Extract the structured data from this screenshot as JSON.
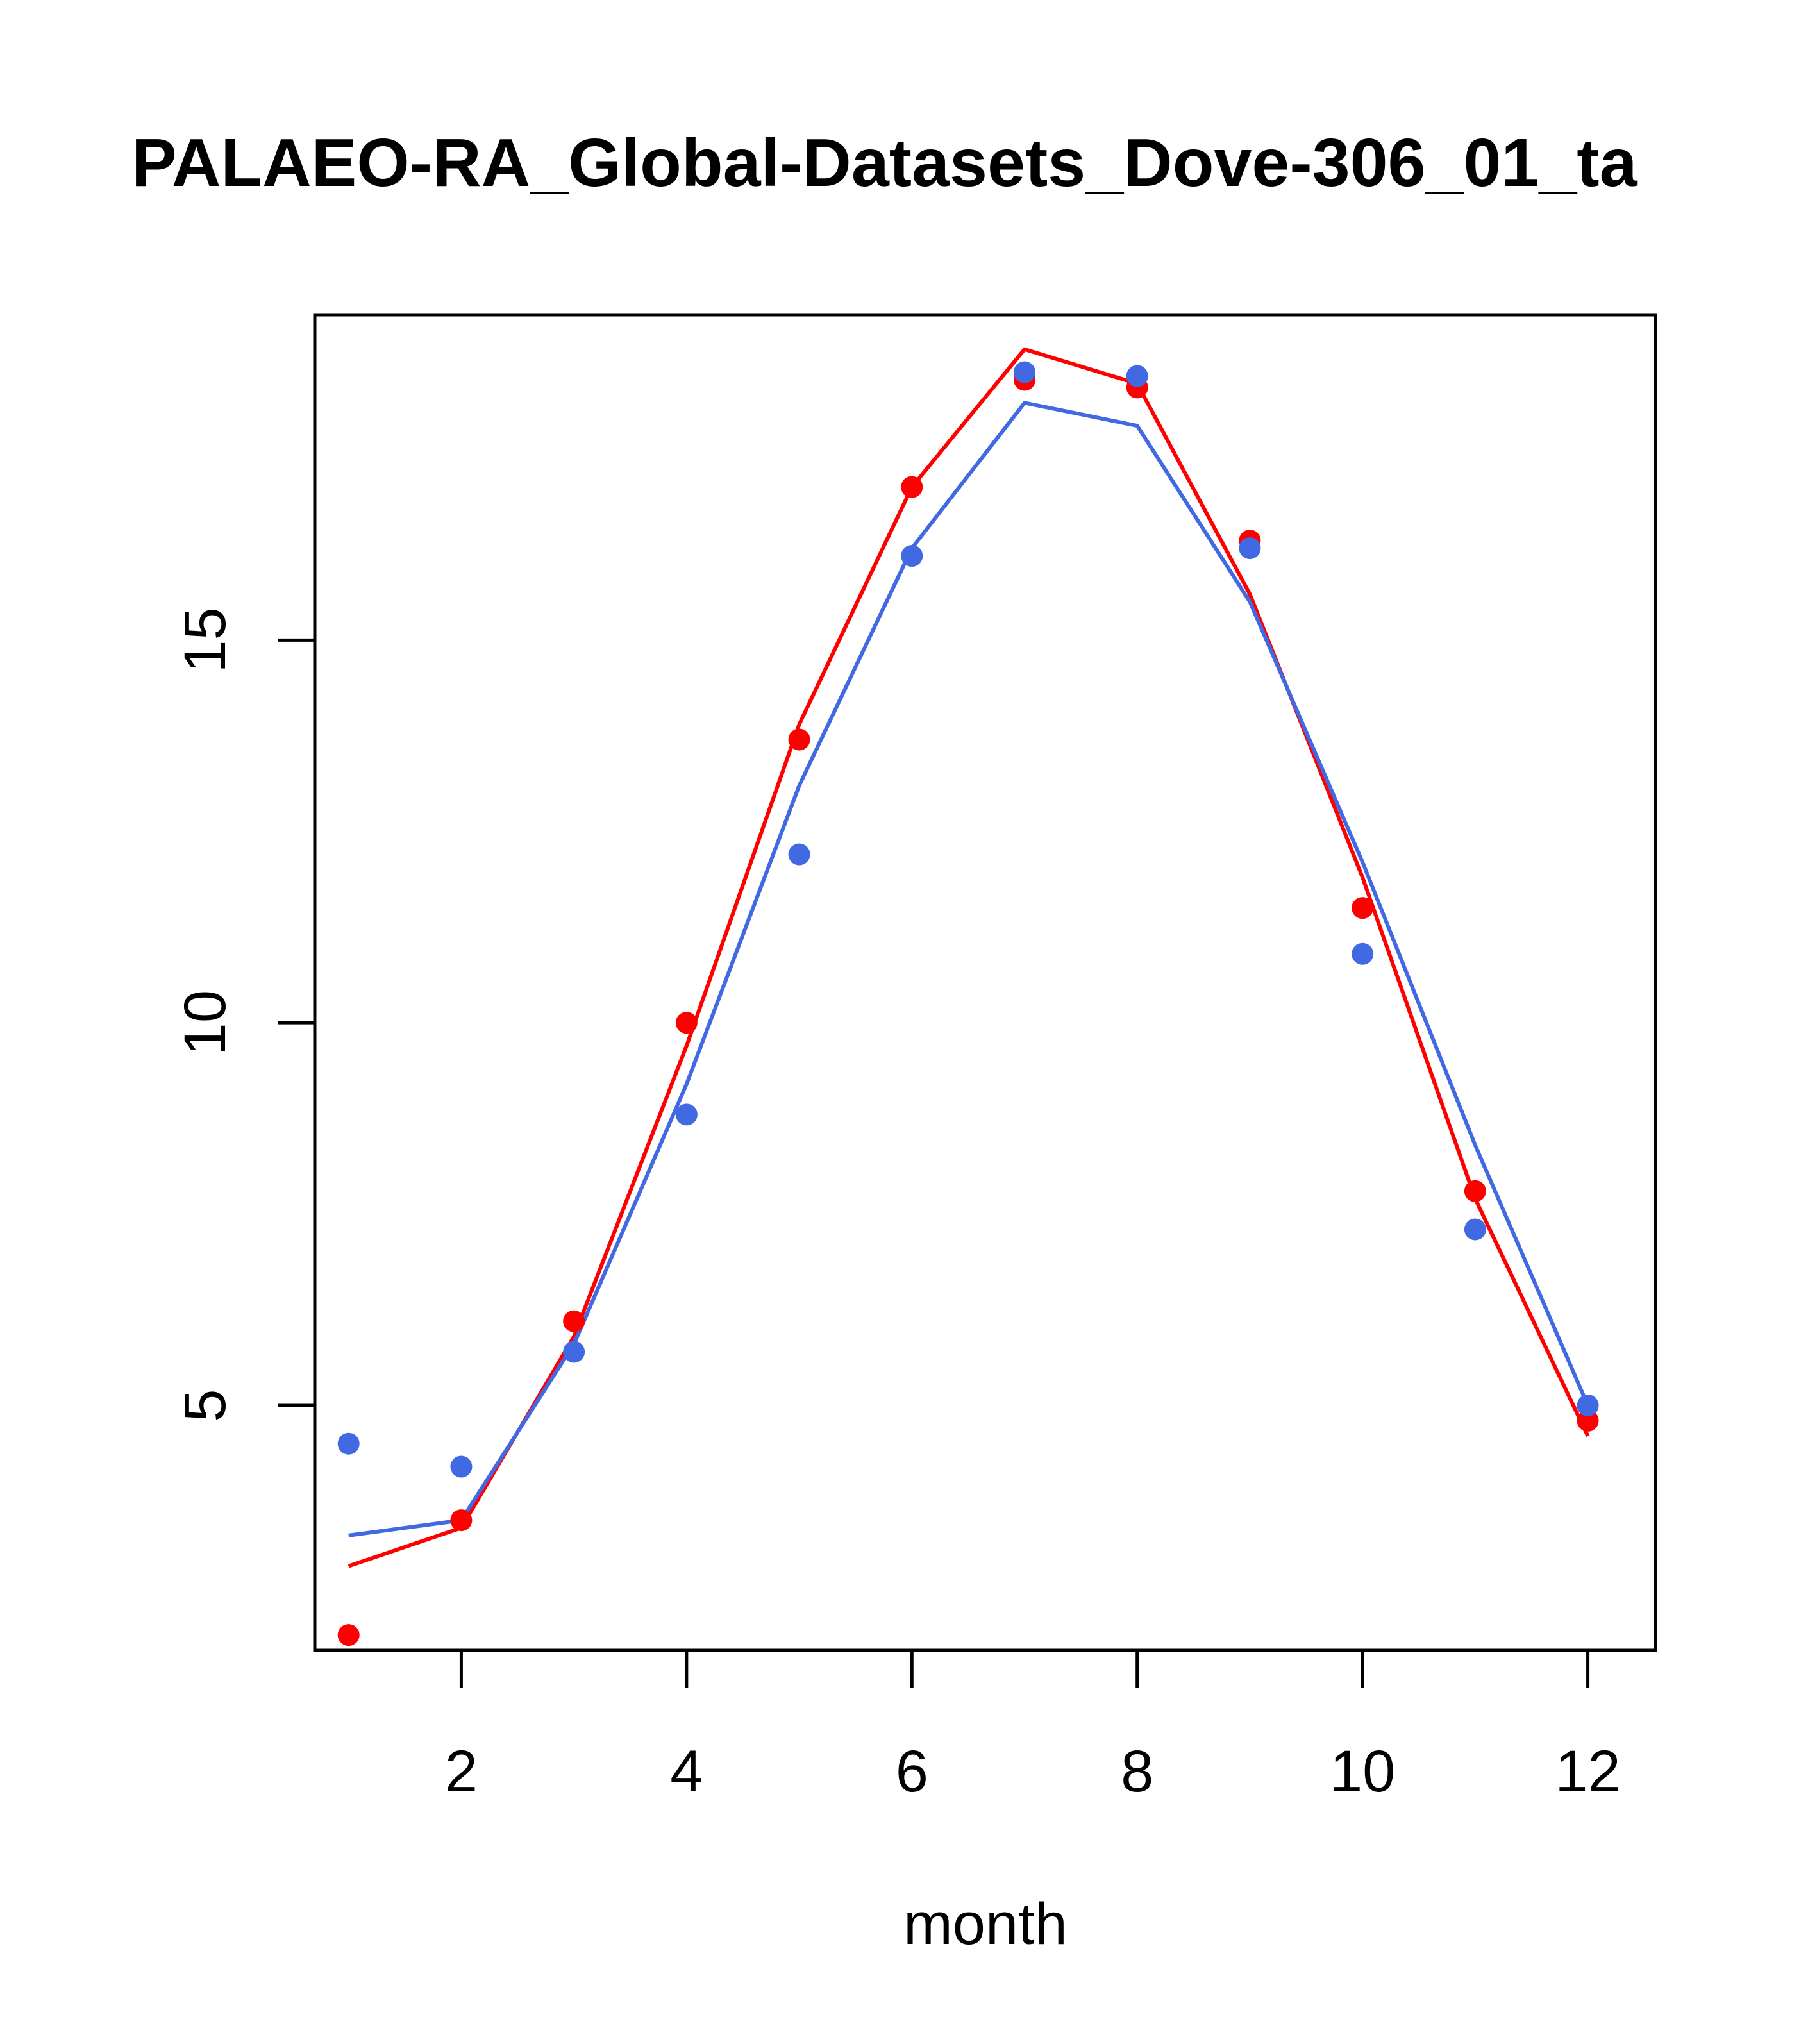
{
  "chart_data": {
    "type": "line",
    "title": "PALAEO-RA_Global-Datasets_Dove-306_01_ta",
    "xlabel": "month",
    "ylabel": "",
    "xlim": [
      0.7,
      12.6
    ],
    "ylim": [
      1.8,
      19.25
    ],
    "x_ticks": [
      "2",
      "4",
      "6",
      "8",
      "10",
      "12"
    ],
    "y_ticks": [
      "5",
      "10",
      "15"
    ],
    "grid": false,
    "legend": "none",
    "x": [
      1,
      2,
      3,
      4,
      5,
      6,
      7,
      8,
      9,
      10,
      11,
      12
    ],
    "series": [
      {
        "color": "#FF0000",
        "points": [
          2.0,
          3.5,
          6.1,
          10.0,
          13.7,
          17.0,
          18.4,
          18.3,
          16.3,
          11.5,
          7.8,
          4.8
        ],
        "line": [
          2.9,
          3.4,
          5.9,
          9.7,
          13.9,
          17.0,
          18.8,
          18.35,
          15.6,
          11.9,
          7.7,
          4.6
        ]
      },
      {
        "color": "#4169E1",
        "points": [
          4.5,
          4.2,
          5.7,
          8.8,
          12.2,
          16.1,
          18.5,
          18.45,
          16.2,
          10.9,
          7.3,
          5.0
        ],
        "line": [
          3.3,
          3.5,
          5.8,
          9.2,
          13.1,
          16.2,
          18.1,
          17.8,
          15.5,
          12.1,
          8.4,
          5.0
        ]
      }
    ]
  }
}
